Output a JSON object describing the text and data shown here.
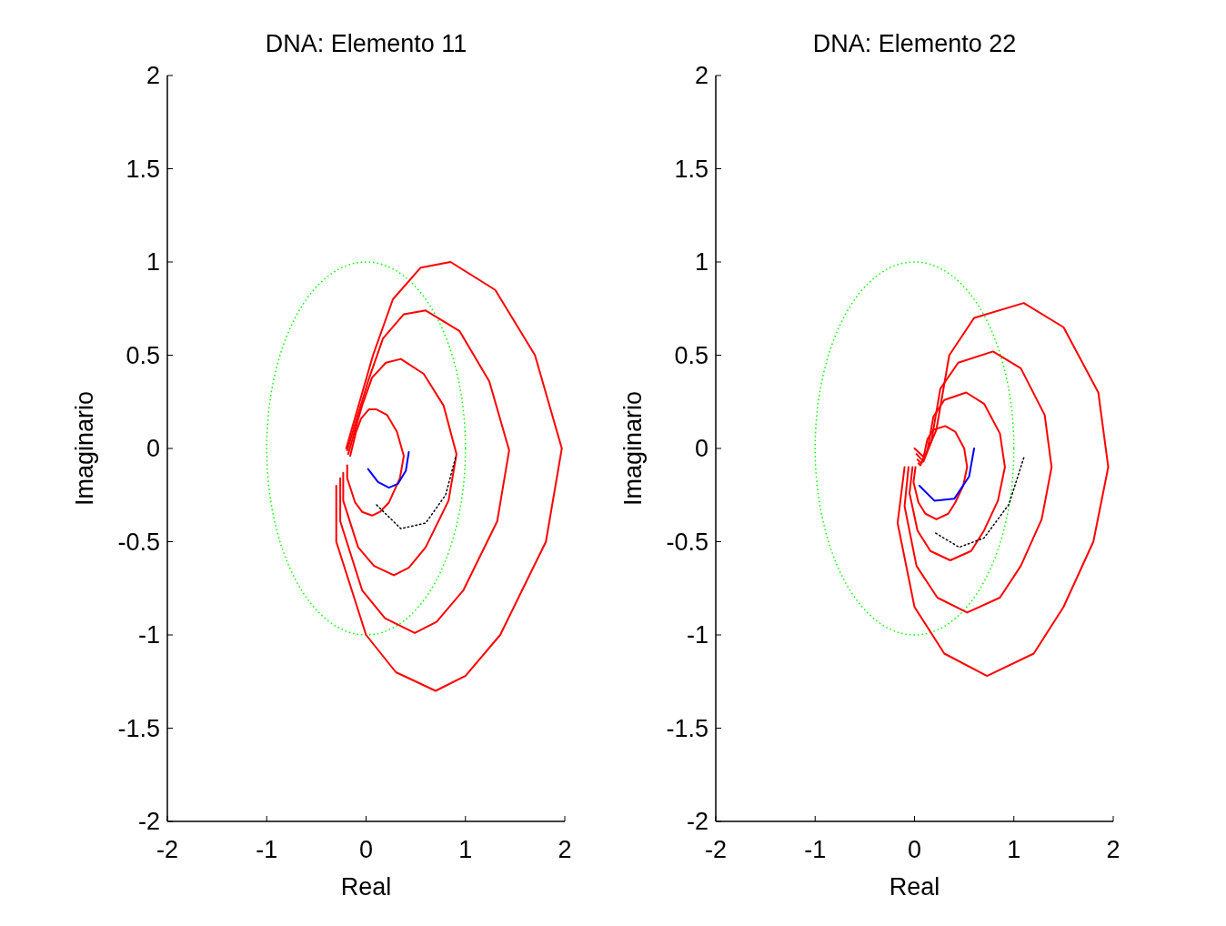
{
  "chart_data": [
    {
      "type": "line",
      "title": "DNA: Elemento 11",
      "xlabel": "Real",
      "ylabel": "Imaginario",
      "xlim": [
        -2,
        2
      ],
      "ylim": [
        -2,
        2
      ],
      "xticks": [
        -2,
        -1,
        0,
        1,
        2
      ],
      "yticks": [
        -2,
        -1.5,
        -1,
        -0.5,
        0,
        0.5,
        1,
        1.5,
        2
      ],
      "grid": false,
      "series": [
        {
          "color": "#ff0000",
          "line_style": "solid",
          "x": [
            -0.2,
            0.07,
            0.27,
            0.55,
            0.85,
            1.3,
            1.7,
            1.97,
            1.81,
            1.35,
            1.0,
            0.7,
            0.3,
            0.0,
            -0.3,
            -0.3
          ],
          "values": [
            0.0,
            0.5,
            0.8,
            0.97,
            1.0,
            0.85,
            0.5,
            0.0,
            -0.5,
            -1.0,
            -1.22,
            -1.3,
            -1.2,
            -1.0,
            -0.5,
            -0.2
          ]
        },
        {
          "color": "#ff0000",
          "line_style": "solid",
          "x": [
            -0.19,
            0.02,
            0.17,
            0.38,
            0.6,
            0.94,
            1.24,
            1.44,
            1.32,
            0.98,
            0.71,
            0.49,
            0.19,
            -0.04,
            -0.26,
            -0.26
          ],
          "values": [
            -0.01,
            0.36,
            0.59,
            0.72,
            0.74,
            0.63,
            0.36,
            -0.01,
            -0.39,
            -0.76,
            -0.93,
            -0.99,
            -0.91,
            -0.76,
            -0.39,
            -0.16
          ]
        },
        {
          "color": "#ff0000",
          "line_style": "solid",
          "x": [
            -0.18,
            -0.04,
            0.06,
            0.2,
            0.35,
            0.58,
            0.78,
            0.91,
            0.83,
            0.6,
            0.43,
            0.28,
            0.08,
            -0.08,
            -0.23,
            -0.23
          ],
          "values": [
            -0.03,
            0.23,
            0.38,
            0.46,
            0.48,
            0.4,
            0.23,
            -0.03,
            -0.28,
            -0.53,
            -0.64,
            -0.68,
            -0.63,
            -0.53,
            -0.28,
            -0.13
          ]
        },
        {
          "color": "#ff0000",
          "line_style": "solid",
          "x": [
            -0.16,
            -0.1,
            -0.05,
            0.03,
            0.1,
            0.21,
            0.31,
            0.38,
            0.34,
            0.23,
            0.14,
            0.06,
            -0.04,
            -0.11,
            -0.19,
            -0.19
          ],
          "values": [
            -0.04,
            0.09,
            0.16,
            0.21,
            0.21,
            0.18,
            0.09,
            -0.04,
            -0.16,
            -0.29,
            -0.34,
            -0.36,
            -0.34,
            -0.29,
            -0.16,
            -0.09
          ]
        },
        {
          "color": "#0000ff",
          "line_style": "solid",
          "x": [
            0.43,
            0.4,
            0.32,
            0.23,
            0.12,
            0.02
          ],
          "values": [
            -0.02,
            -0.12,
            -0.19,
            -0.21,
            -0.18,
            -0.11
          ]
        },
        {
          "color": "#000000",
          "line_style": "dotted",
          "x": [
            0.9,
            0.8,
            0.6,
            0.35,
            0.1
          ],
          "values": [
            -0.05,
            -0.25,
            -0.4,
            -0.43,
            -0.3
          ]
        }
      ]
    },
    {
      "type": "line",
      "title": "DNA: Elemento 22",
      "xlabel": "Real",
      "ylabel": "Imaginario",
      "xlim": [
        -2,
        2
      ],
      "ylim": [
        -2,
        2
      ],
      "xticks": [
        -2,
        -1,
        0,
        1,
        2
      ],
      "yticks": [
        -2,
        -1.5,
        -1,
        -0.5,
        0,
        0.5,
        1,
        1.5,
        2
      ],
      "grid": false,
      "series": [
        {
          "color": "#ff0000",
          "line_style": "solid",
          "x": [
            0.0,
            0.1,
            0.22,
            0.35,
            0.6,
            1.1,
            1.5,
            1.85,
            1.95,
            1.8,
            1.5,
            1.2,
            0.73,
            0.3,
            0.0,
            -0.17,
            -0.1
          ],
          "values": [
            0.0,
            -0.05,
            0.1,
            0.5,
            0.7,
            0.78,
            0.65,
            0.3,
            -0.1,
            -0.5,
            -0.85,
            -1.1,
            -1.22,
            -1.1,
            -0.85,
            -0.4,
            -0.1
          ]
        },
        {
          "color": "#ff0000",
          "line_style": "solid",
          "x": [
            0.02,
            0.09,
            0.17,
            0.26,
            0.44,
            0.79,
            1.07,
            1.31,
            1.38,
            1.28,
            1.07,
            0.86,
            0.53,
            0.23,
            0.02,
            -0.1,
            -0.06
          ],
          "values": [
            -0.03,
            -0.07,
            0.04,
            0.32,
            0.46,
            0.52,
            0.43,
            0.18,
            -0.1,
            -0.38,
            -0.63,
            -0.8,
            -0.88,
            -0.8,
            -0.63,
            -0.31,
            -0.1
          ]
        },
        {
          "color": "#ff0000",
          "line_style": "solid",
          "x": [
            0.03,
            0.07,
            0.13,
            0.19,
            0.3,
            0.52,
            0.7,
            0.86,
            0.91,
            0.84,
            0.7,
            0.57,
            0.36,
            0.16,
            0.03,
            -0.05,
            -0.02
          ],
          "values": [
            -0.06,
            -0.08,
            -0.01,
            0.17,
            0.26,
            0.3,
            0.24,
            0.08,
            -0.1,
            -0.28,
            -0.44,
            -0.55,
            -0.6,
            -0.55,
            -0.44,
            -0.24,
            -0.1
          ]
        },
        {
          "color": "#ff0000",
          "line_style": "solid",
          "x": [
            0.04,
            0.06,
            0.09,
            0.13,
            0.19,
            0.31,
            0.41,
            0.5,
            0.53,
            0.49,
            0.41,
            0.34,
            0.22,
            0.11,
            0.04,
            -0.01,
            0.01
          ],
          "values": [
            -0.08,
            -0.09,
            -0.05,
            0.05,
            0.1,
            0.12,
            0.09,
            0.0,
            -0.1,
            -0.2,
            -0.29,
            -0.35,
            -0.38,
            -0.35,
            -0.29,
            -0.18,
            -0.1
          ]
        },
        {
          "color": "#0000ff",
          "line_style": "solid",
          "x": [
            0.6,
            0.55,
            0.4,
            0.2,
            0.05
          ],
          "values": [
            0.0,
            -0.15,
            -0.27,
            -0.28,
            -0.2
          ]
        },
        {
          "color": "#000000",
          "line_style": "dotted",
          "x": [
            1.1,
            0.95,
            0.7,
            0.45,
            0.2
          ],
          "values": [
            -0.05,
            -0.3,
            -0.48,
            -0.53,
            -0.45
          ]
        }
      ]
    }
  ]
}
